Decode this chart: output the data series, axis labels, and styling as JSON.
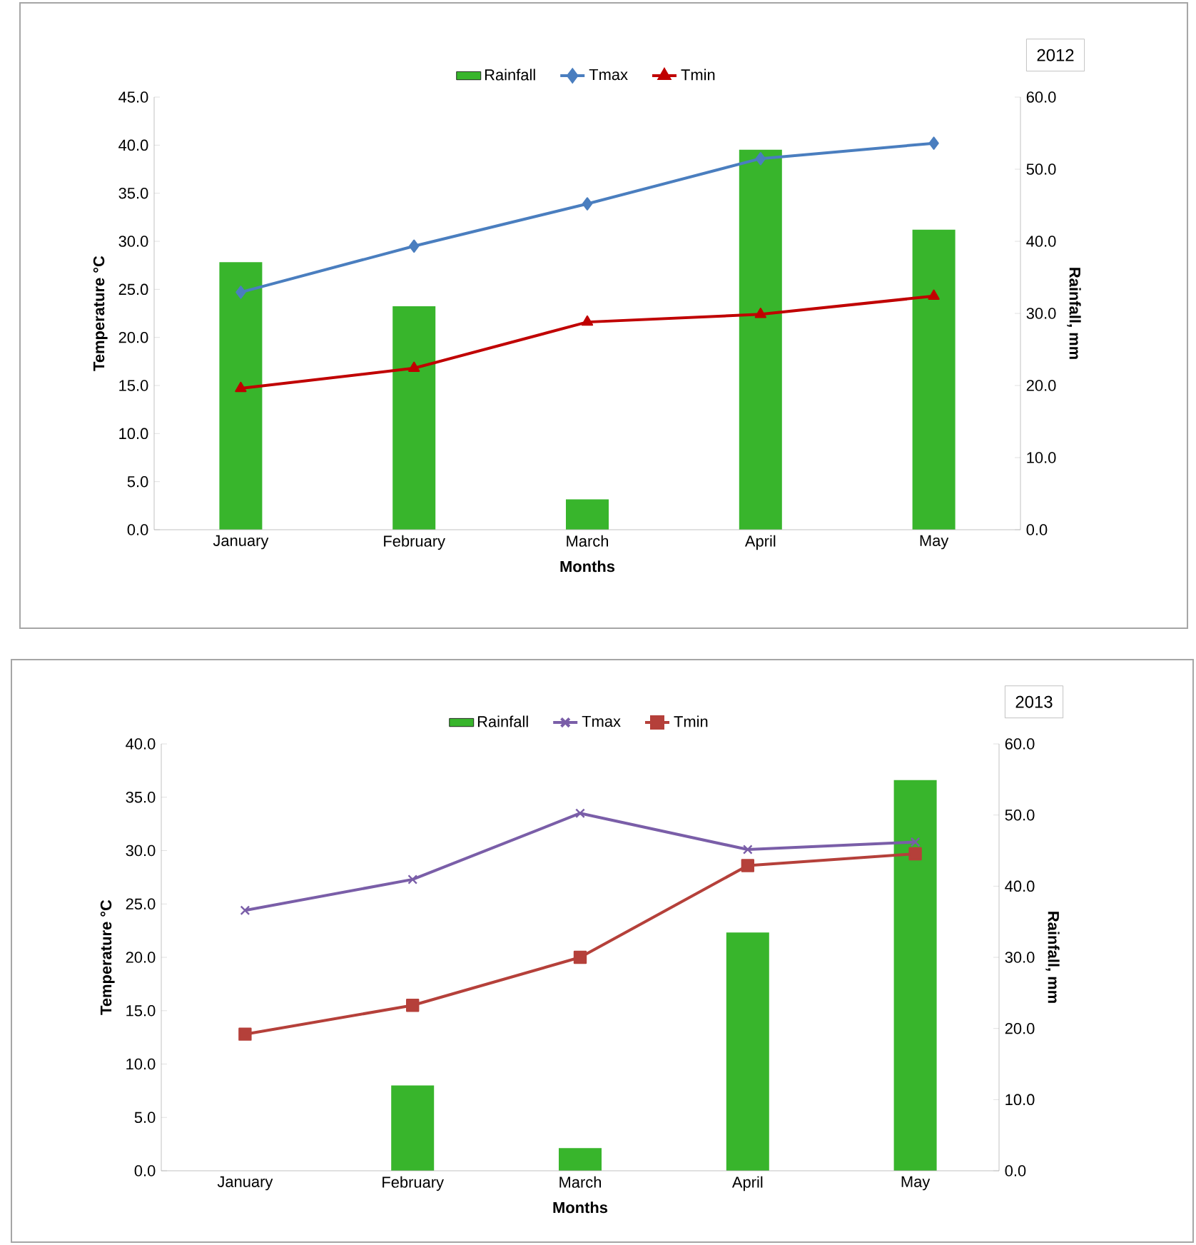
{
  "chart_data": [
    {
      "type": "bar",
      "title": "2012",
      "xlabel": "Months",
      "ylabel": "Temperature °C",
      "y2label": "Rainfall, mm",
      "legend": "top",
      "categories": [
        "January",
        "February",
        "March",
        "April",
        "May"
      ],
      "series": [
        {
          "name": "Rainfall",
          "axis": "y2",
          "color": "#38b52c",
          "values": [
            37.1,
            31.0,
            4.2,
            52.7,
            41.6
          ]
        },
        {
          "name": "Tmax",
          "type": "line",
          "axis": "y",
          "marker": "diamond",
          "color": "#4a7ebf",
          "values": [
            24.7,
            29.5,
            33.9,
            38.6,
            40.2
          ]
        },
        {
          "name": "Tmin",
          "type": "line",
          "axis": "y",
          "marker": "triangle",
          "color": "#c00000",
          "values": [
            14.7,
            16.8,
            21.6,
            22.4,
            24.3
          ]
        }
      ],
      "ylim": [
        0,
        45
      ],
      "yticks": [
        {
          "value": 0,
          "label": "0.0"
        },
        {
          "value": 5,
          "label": "5.0"
        },
        {
          "value": 10,
          "label": "10.0"
        },
        {
          "value": 15,
          "label": "15.0"
        },
        {
          "value": 20,
          "label": "20.0"
        },
        {
          "value": 25,
          "label": "25.0"
        },
        {
          "value": 30,
          "label": "30.0"
        },
        {
          "value": 35,
          "label": "35.0"
        },
        {
          "value": 40,
          "label": "40.0"
        },
        {
          "value": 45,
          "label": "45.0"
        }
      ],
      "y2lim": [
        0,
        60
      ],
      "y2ticks": [
        {
          "value": 0,
          "label": "0.0"
        },
        {
          "value": 10,
          "label": "10.0"
        },
        {
          "value": 20,
          "label": "20.0"
        },
        {
          "value": 30,
          "label": "30.0"
        },
        {
          "value": 40,
          "label": "40.0"
        },
        {
          "value": 50,
          "label": "50.0"
        },
        {
          "value": 60,
          "label": "60.0"
        }
      ]
    },
    {
      "type": "bar",
      "title": "2013",
      "xlabel": "Months",
      "ylabel": "Temperature °C",
      "y2label": "Rainfall, mm",
      "legend": "top",
      "categories": [
        "January",
        "February",
        "March",
        "April",
        "May"
      ],
      "series": [
        {
          "name": "Rainfall",
          "axis": "y2",
          "color": "#38b52c",
          "values": [
            0,
            12.0,
            3.2,
            33.5,
            54.9
          ]
        },
        {
          "name": "Tmax",
          "type": "line",
          "axis": "y",
          "marker": "cross",
          "color": "#7a5ea8",
          "values": [
            24.4,
            27.3,
            33.5,
            30.1,
            30.8
          ]
        },
        {
          "name": "Tmin",
          "type": "line",
          "axis": "y",
          "marker": "square",
          "color": "#b5403a",
          "values": [
            12.8,
            15.5,
            20.0,
            28.6,
            29.7
          ]
        }
      ],
      "ylim": [
        0,
        40
      ],
      "yticks": [
        {
          "value": 0,
          "label": "0.0"
        },
        {
          "value": 5,
          "label": "5.0"
        },
        {
          "value": 10,
          "label": "10.0"
        },
        {
          "value": 15,
          "label": "15.0"
        },
        {
          "value": 20,
          "label": "20.0"
        },
        {
          "value": 25,
          "label": "25.0"
        },
        {
          "value": 30,
          "label": "30.0"
        },
        {
          "value": 35,
          "label": "35.0"
        },
        {
          "value": 40,
          "label": "40.0"
        }
      ],
      "y2lim": [
        0,
        60
      ],
      "y2ticks": [
        {
          "value": 0,
          "label": "0.0"
        },
        {
          "value": 10,
          "label": "10.0"
        },
        {
          "value": 20,
          "label": "20.0"
        },
        {
          "value": 30,
          "label": "30.0"
        },
        {
          "value": 40,
          "label": "40.0"
        },
        {
          "value": 50,
          "label": "50.0"
        },
        {
          "value": 60,
          "label": "60.0"
        }
      ]
    }
  ]
}
